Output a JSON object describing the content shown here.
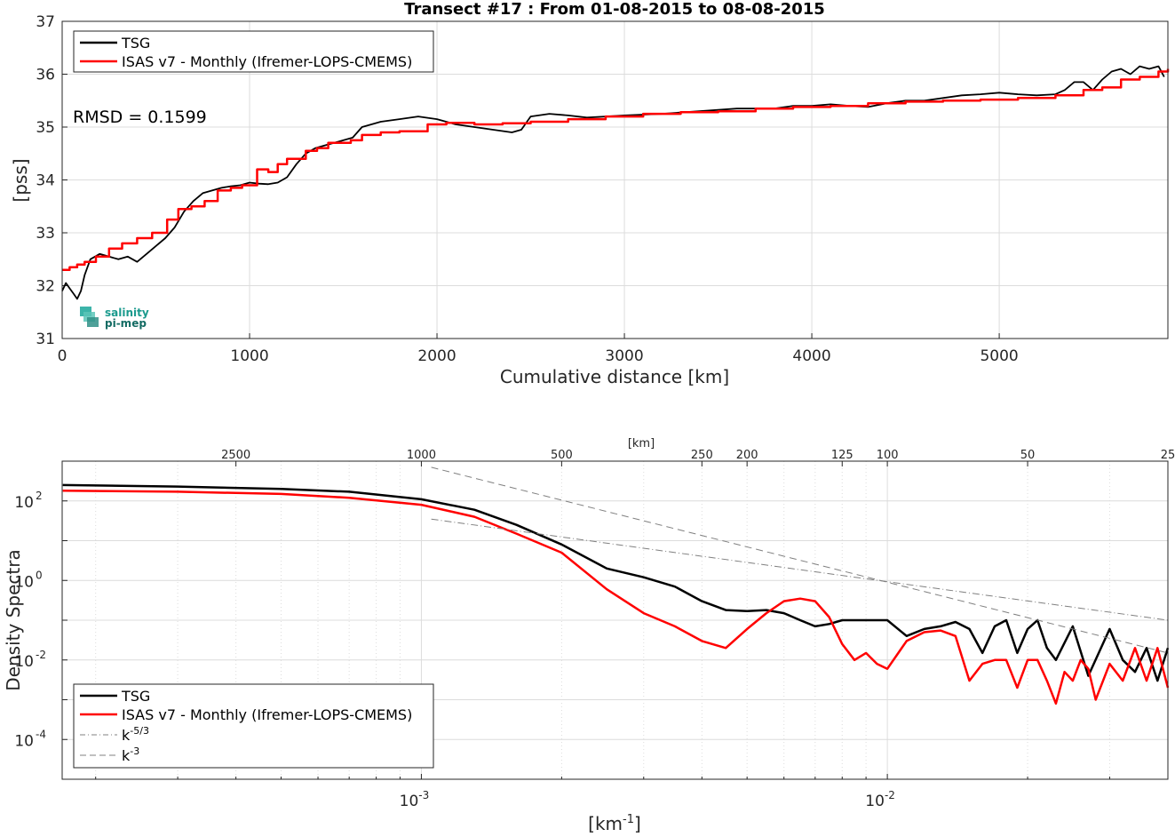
{
  "chart_data": [
    {
      "type": "line",
      "title": "Transect #17 : From 01-08-2015 to 08-08-2015",
      "xlabel": "Cumulative distance [km]",
      "ylabel": "[pss]",
      "xlim": [
        0,
        5900
      ],
      "ylim": [
        31,
        37
      ],
      "xticks": [
        "0",
        "1000",
        "2000",
        "3000",
        "4000",
        "5000"
      ],
      "yticks": [
        "31",
        "32",
        "33",
        "34",
        "35",
        "36",
        "37"
      ],
      "grid": true,
      "legend_position": "top-left",
      "annotation": "RMSD = 0.1599",
      "logo": "salinity pi-mep",
      "series": [
        {
          "name": "TSG",
          "color": "#000000",
          "x": [
            0,
            20,
            40,
            60,
            80,
            100,
            120,
            150,
            200,
            250,
            300,
            350,
            400,
            450,
            500,
            550,
            600,
            650,
            700,
            750,
            800,
            850,
            900,
            950,
            1000,
            1050,
            1100,
            1150,
            1200,
            1250,
            1300,
            1350,
            1400,
            1450,
            1500,
            1550,
            1600,
            1650,
            1700,
            1800,
            1900,
            2000,
            2100,
            2200,
            2300,
            2400,
            2450,
            2500,
            2600,
            2700,
            2800,
            2900,
            3000,
            3200,
            3400,
            3600,
            3800,
            3900,
            4000,
            4100,
            4200,
            4300,
            4400,
            4500,
            4600,
            4700,
            4800,
            4900,
            5000,
            5100,
            5200,
            5300,
            5350,
            5400,
            5450,
            5500,
            5550,
            5600,
            5650,
            5700,
            5750,
            5800,
            5850,
            5880
          ],
          "values": [
            31.9,
            32.05,
            31.95,
            31.85,
            31.75,
            31.9,
            32.2,
            32.5,
            32.6,
            32.55,
            32.5,
            32.55,
            32.45,
            32.6,
            32.75,
            32.9,
            33.1,
            33.4,
            33.6,
            33.75,
            33.8,
            33.85,
            33.88,
            33.9,
            33.95,
            33.93,
            33.92,
            33.95,
            34.05,
            34.3,
            34.5,
            34.6,
            34.65,
            34.7,
            34.75,
            34.8,
            35.0,
            35.05,
            35.1,
            35.15,
            35.2,
            35.15,
            35.05,
            35.0,
            34.95,
            34.9,
            34.95,
            35.2,
            35.25,
            35.22,
            35.18,
            35.2,
            35.22,
            35.25,
            35.3,
            35.35,
            35.35,
            35.4,
            35.4,
            35.43,
            35.4,
            35.38,
            35.45,
            35.5,
            35.5,
            35.55,
            35.6,
            35.62,
            35.65,
            35.62,
            35.6,
            35.62,
            35.7,
            35.85,
            35.85,
            35.7,
            35.9,
            36.05,
            36.1,
            36.0,
            36.15,
            36.1,
            36.15,
            35.95
          ]
        },
        {
          "name": "ISAS v7 - Monthly (Ifremer-LOPS-CMEMS)",
          "color": "#ff0000",
          "x": [
            0,
            40,
            80,
            120,
            180,
            250,
            320,
            400,
            480,
            560,
            620,
            690,
            760,
            830,
            900,
            960,
            1040,
            1100,
            1150,
            1200,
            1250,
            1300,
            1360,
            1420,
            1480,
            1540,
            1600,
            1700,
            1800,
            1950,
            2050,
            2200,
            2350,
            2500,
            2700,
            2900,
            3100,
            3300,
            3500,
            3700,
            3900,
            4100,
            4300,
            4500,
            4700,
            4900,
            5100,
            5300,
            5450,
            5550,
            5650,
            5750,
            5850,
            5900
          ],
          "values": [
            32.3,
            32.35,
            32.4,
            32.45,
            32.55,
            32.7,
            32.8,
            32.9,
            33.0,
            33.25,
            33.45,
            33.5,
            33.6,
            33.8,
            33.85,
            33.9,
            34.2,
            34.15,
            34.3,
            34.4,
            34.4,
            34.55,
            34.6,
            34.7,
            34.7,
            34.75,
            34.85,
            34.9,
            34.92,
            35.05,
            35.08,
            35.05,
            35.07,
            35.1,
            35.15,
            35.2,
            35.25,
            35.28,
            35.3,
            35.35,
            35.38,
            35.4,
            35.45,
            35.48,
            35.5,
            35.52,
            35.55,
            35.6,
            35.7,
            35.75,
            35.9,
            35.95,
            36.05,
            36.1
          ]
        }
      ]
    },
    {
      "type": "line",
      "xlabel": "[km-1]",
      "ylabel": "Density Spectra",
      "top_axis_label": "[km]",
      "top_ticks": [
        "2500",
        "1000",
        "500",
        "250",
        "200",
        "125",
        "100",
        "50",
        "25"
      ],
      "xscale": "log",
      "yscale": "log",
      "xlim": [
        0.0001695,
        0.04
      ],
      "ylim": [
        1e-05,
        1000
      ],
      "xticks": [
        "10",
        "10"
      ],
      "xtick_exponents": [
        "-3",
        "-2"
      ],
      "yticks": [
        "10",
        "10",
        "10",
        "10"
      ],
      "ytick_exponents": [
        "2",
        "0",
        "-2",
        "-4"
      ],
      "grid": true,
      "legend_position": "bottom-left",
      "series": [
        {
          "name": "TSG",
          "color": "#000000",
          "x": [
            0.00017,
            0.0003,
            0.0005,
            0.0007,
            0.001,
            0.0013,
            0.0016,
            0.002,
            0.0025,
            0.003,
            0.0035,
            0.004,
            0.0045,
            0.005,
            0.0055,
            0.006,
            0.0065,
            0.007,
            0.0075,
            0.008,
            0.009,
            0.01,
            0.011,
            0.012,
            0.013,
            0.014,
            0.015,
            0.016,
            0.017,
            0.018,
            0.019,
            0.02,
            0.021,
            0.022,
            0.023,
            0.025,
            0.027,
            0.03,
            0.032,
            0.034,
            0.036,
            0.038,
            0.04
          ],
          "values": [
            250,
            230,
            200,
            170,
            110,
            60,
            25,
            8,
            2,
            1.2,
            0.7,
            0.3,
            0.18,
            0.17,
            0.18,
            0.15,
            0.1,
            0.07,
            0.08,
            0.1,
            0.1,
            0.1,
            0.04,
            0.06,
            0.07,
            0.09,
            0.06,
            0.015,
            0.07,
            0.1,
            0.015,
            0.06,
            0.1,
            0.02,
            0.01,
            0.07,
            0.004,
            0.06,
            0.01,
            0.005,
            0.02,
            0.003,
            0.02
          ]
        },
        {
          "name": "ISAS v7 - Monthly (Ifremer-LOPS-CMEMS)",
          "color": "#ff0000",
          "x": [
            0.00017,
            0.0003,
            0.0005,
            0.0007,
            0.001,
            0.0013,
            0.0016,
            0.002,
            0.0025,
            0.003,
            0.0035,
            0.004,
            0.0045,
            0.005,
            0.0055,
            0.006,
            0.0065,
            0.007,
            0.0075,
            0.008,
            0.0085,
            0.009,
            0.0095,
            0.01,
            0.011,
            0.012,
            0.013,
            0.014,
            0.015,
            0.016,
            0.017,
            0.018,
            0.019,
            0.02,
            0.021,
            0.022,
            0.023,
            0.024,
            0.025,
            0.026,
            0.027,
            0.028,
            0.03,
            0.032,
            0.034,
            0.036,
            0.038,
            0.04
          ],
          "values": [
            180,
            170,
            150,
            120,
            80,
            40,
            15,
            5,
            0.6,
            0.15,
            0.07,
            0.03,
            0.02,
            0.06,
            0.15,
            0.3,
            0.35,
            0.3,
            0.12,
            0.025,
            0.01,
            0.015,
            0.008,
            0.006,
            0.03,
            0.05,
            0.055,
            0.04,
            0.003,
            0.008,
            0.01,
            0.01,
            0.002,
            0.01,
            0.01,
            0.003,
            0.0008,
            0.005,
            0.003,
            0.01,
            0.006,
            0.001,
            0.008,
            0.003,
            0.02,
            0.003,
            0.02,
            0.002
          ]
        },
        {
          "name": "k-5/3",
          "color": "#808080",
          "x": [
            0.00105,
            0.04
          ],
          "values": [
            35,
            0.1
          ]
        },
        {
          "name": "k-3",
          "color": "#808080",
          "x": [
            0.00105,
            0.04
          ],
          "values": [
            700,
            0.015
          ]
        }
      ]
    }
  ]
}
